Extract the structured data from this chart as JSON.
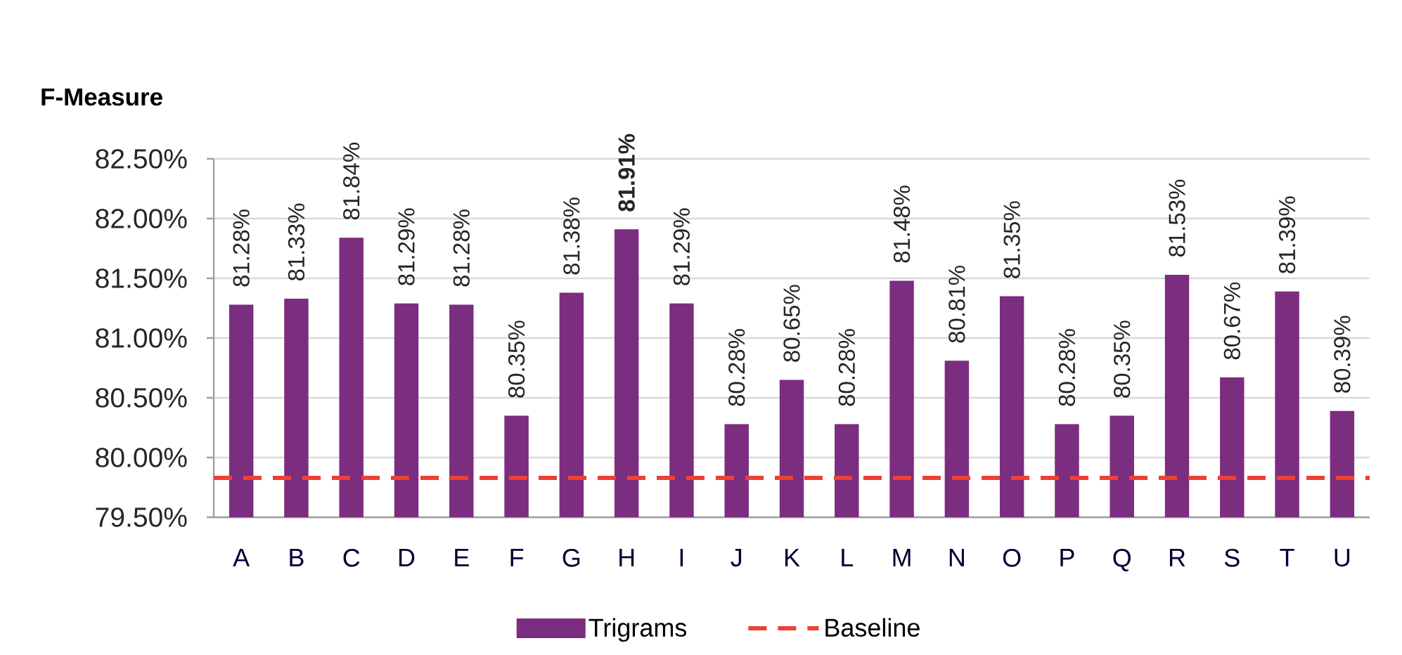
{
  "chart_data": {
    "type": "bar",
    "ylabel": "F-Measure",
    "categories": [
      "A",
      "B",
      "C",
      "D",
      "E",
      "F",
      "G",
      "H",
      "I",
      "J",
      "K",
      "L",
      "M",
      "N",
      "O",
      "P",
      "Q",
      "R",
      "S",
      "T",
      "U"
    ],
    "series": [
      {
        "name": "Trigrams",
        "color": "#7b2d7f",
        "values": [
          81.28,
          81.33,
          81.84,
          81.29,
          81.28,
          80.35,
          81.38,
          81.91,
          81.29,
          80.28,
          80.65,
          80.28,
          81.48,
          80.81,
          81.35,
          80.28,
          80.35,
          81.53,
          80.67,
          81.39,
          80.39
        ],
        "value_labels": [
          "81.28%",
          "81.33%",
          "81.84%",
          "81.29%",
          "81.28%",
          "80.35%",
          "81.38%",
          "**81.91%**",
          "81.29%",
          "80.28%",
          "80.65%",
          "80.28%",
          "81.48%",
          "80.81%",
          "81.35%",
          "80.28%",
          "80.35%",
          "81.53%",
          "80.67%",
          "81.39%",
          "80.39%"
        ]
      }
    ],
    "ylim": [
      79.5,
      82.5
    ],
    "yticks": [
      {
        "value": 79.5,
        "label": "79.50%"
      },
      {
        "value": 80.0,
        "label": "80.00%"
      },
      {
        "value": 80.5,
        "label": "80.50%"
      },
      {
        "value": 81.0,
        "label": "81.00%"
      },
      {
        "value": 81.5,
        "label": "81.50%"
      },
      {
        "value": 82.0,
        "label": "82.00%"
      },
      {
        "value": 82.5,
        "label": "82.50%"
      }
    ],
    "grid": "y",
    "legend": "bottom",
    "ref_lines": [
      {
        "axis": "y",
        "value": 79.83,
        "label": "Baseline",
        "color": "#ee4035",
        "line_style": "dashed"
      }
    ]
  }
}
